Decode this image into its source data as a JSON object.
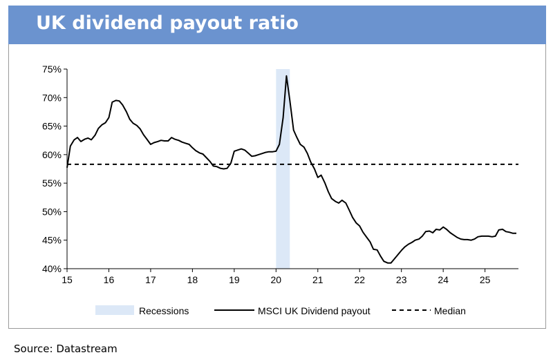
{
  "title": "UK dividend payout ratio",
  "source": "Source: Datastream",
  "chart_data": {
    "type": "line",
    "title": "UK dividend payout ratio",
    "xlabel": "",
    "ylabel": "",
    "xlim": [
      15,
      25.8
    ],
    "ylim": [
      40,
      75
    ],
    "y_ticks": [
      "40%",
      "45%",
      "50%",
      "55%",
      "60%",
      "65%",
      "70%",
      "75%"
    ],
    "y_tick_values": [
      40,
      45,
      50,
      55,
      60,
      65,
      70,
      75
    ],
    "x_ticks": [
      "15",
      "16",
      "17",
      "18",
      "19",
      "20",
      "21",
      "22",
      "23",
      "24",
      "25"
    ],
    "x_tick_values": [
      15,
      16,
      17,
      18,
      19,
      20,
      21,
      22,
      23,
      24,
      25
    ],
    "grid": false,
    "legend_position": "bottom",
    "legend": [
      "Recessions",
      "MSCI UK Dividend payout",
      "Median"
    ],
    "colors": {
      "series": "#000000",
      "recession": "#dce8f7",
      "median": "#000000"
    },
    "recessions": [
      [
        20.0,
        20.33
      ]
    ],
    "median": 58.3,
    "series": [
      {
        "name": "MSCI UK Dividend payout",
        "x": [
          15.0,
          15.08,
          15.17,
          15.25,
          15.33,
          15.42,
          15.5,
          15.58,
          15.67,
          15.75,
          15.83,
          15.92,
          16.0,
          16.08,
          16.17,
          16.25,
          16.33,
          16.42,
          16.5,
          16.58,
          16.67,
          16.75,
          16.83,
          16.92,
          17.0,
          17.08,
          17.17,
          17.25,
          17.33,
          17.42,
          17.5,
          17.58,
          17.67,
          17.75,
          17.83,
          17.92,
          18.0,
          18.08,
          18.17,
          18.25,
          18.33,
          18.42,
          18.5,
          18.58,
          18.67,
          18.75,
          18.83,
          18.92,
          19.0,
          19.08,
          19.17,
          19.25,
          19.33,
          19.42,
          19.5,
          19.58,
          19.67,
          19.75,
          19.83,
          19.92,
          20.0,
          20.08,
          20.17,
          20.25,
          20.33,
          20.42,
          20.5,
          20.58,
          20.67,
          20.75,
          20.83,
          20.92,
          21.0,
          21.08,
          21.17,
          21.25,
          21.33,
          21.42,
          21.5,
          21.58,
          21.67,
          21.75,
          21.83,
          21.92,
          22.0,
          22.08,
          22.17,
          22.25,
          22.33,
          22.42,
          22.5,
          22.58,
          22.67,
          22.75,
          22.83,
          22.92,
          23.0,
          23.08,
          23.17,
          23.25,
          23.33,
          23.42,
          23.5,
          23.58,
          23.67,
          23.75,
          23.83,
          23.92,
          24.0,
          24.08,
          24.17,
          24.25,
          24.33,
          24.42,
          24.5,
          24.58,
          24.67,
          24.75,
          24.83,
          24.92,
          25.0,
          25.08,
          25.17,
          25.25,
          25.33,
          25.42,
          25.5,
          25.58,
          25.67,
          25.75
        ],
        "values": [
          57.7,
          61.5,
          62.6,
          63.0,
          62.3,
          62.7,
          62.9,
          62.6,
          63.4,
          64.6,
          65.2,
          65.6,
          66.5,
          69.2,
          69.5,
          69.4,
          68.7,
          67.5,
          66.2,
          65.5,
          65.1,
          64.5,
          63.5,
          62.6,
          61.8,
          62.1,
          62.3,
          62.5,
          62.4,
          62.4,
          63.0,
          62.7,
          62.5,
          62.2,
          62.0,
          61.8,
          61.2,
          60.7,
          60.3,
          60.1,
          59.5,
          58.8,
          58.0,
          57.9,
          57.6,
          57.5,
          57.6,
          58.5,
          60.6,
          60.8,
          61.0,
          60.8,
          60.3,
          59.7,
          59.8,
          60.0,
          60.2,
          60.4,
          60.5,
          60.5,
          60.6,
          61.8,
          66.5,
          73.8,
          69.5,
          64.3,
          63.0,
          61.8,
          61.3,
          60.2,
          58.7,
          57.5,
          56.0,
          56.4,
          55.0,
          53.5,
          52.3,
          51.8,
          51.5,
          52.0,
          51.5,
          50.3,
          49.0,
          48.0,
          47.5,
          46.4,
          45.5,
          44.7,
          43.4,
          43.3,
          42.2,
          41.3,
          41.0,
          41.0,
          41.7,
          42.5,
          43.2,
          43.8,
          44.3,
          44.6,
          45.0,
          45.2,
          45.7,
          46.5,
          46.6,
          46.3,
          46.9,
          46.8,
          47.3,
          46.9,
          46.3,
          45.9,
          45.5,
          45.2,
          45.1,
          45.1,
          45.0,
          45.2,
          45.6,
          45.7,
          45.7,
          45.7,
          45.6,
          45.7,
          46.8,
          46.9,
          46.5,
          46.4,
          46.2,
          46.2
        ]
      }
    ]
  }
}
